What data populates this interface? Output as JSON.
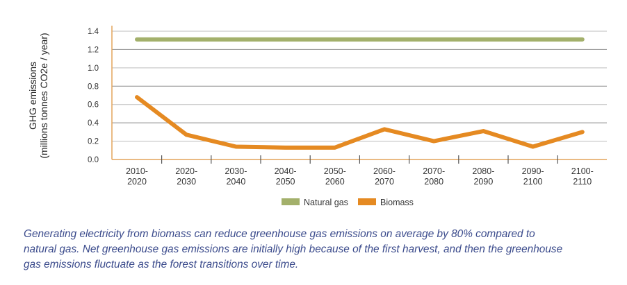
{
  "chart_data": {
    "type": "line",
    "title": "",
    "ylabel": [
      "GHG emissions",
      "(millions tonnes CO2e / year)"
    ],
    "xlabel": "",
    "categories": [
      [
        "2010-",
        "2020"
      ],
      [
        "2020-",
        "2030"
      ],
      [
        "2030-",
        "2040"
      ],
      [
        "2040-",
        "2050"
      ],
      [
        "2050-",
        "2060"
      ],
      [
        "2060-",
        "2070"
      ],
      [
        "2070-",
        "2080"
      ],
      [
        "2080-",
        "2090"
      ],
      [
        "2090-",
        "2100"
      ],
      [
        "2100-",
        "2110"
      ]
    ],
    "ylim": [
      0,
      1.4
    ],
    "yticks": [
      "0.0",
      "0.2",
      "0.4",
      "0.6",
      "0.8",
      "1.0",
      "1.2",
      "1.4"
    ],
    "grid": true,
    "legend_placement": "bottom-center",
    "series": [
      {
        "name": "Natural gas",
        "color": "#a3b06b",
        "values": [
          1.31,
          1.31,
          1.31,
          1.31,
          1.31,
          1.31,
          1.31,
          1.31,
          1.31,
          1.31
        ]
      },
      {
        "name": "Biomass",
        "color": "#e58a22",
        "values": [
          0.68,
          0.27,
          0.14,
          0.13,
          0.13,
          0.33,
          0.2,
          0.31,
          0.14,
          0.3
        ]
      }
    ],
    "axis_color": "#e3a35a"
  },
  "caption": [
    "Generating electricity from biomass can reduce greenhouse gas emissions on average by 80% compared to",
    "natural gas. Net greenhouse gas emissions are initially high because of the first harvest, and then the greenhouse",
    "gas emissions fluctuate as the forest transitions over time."
  ]
}
